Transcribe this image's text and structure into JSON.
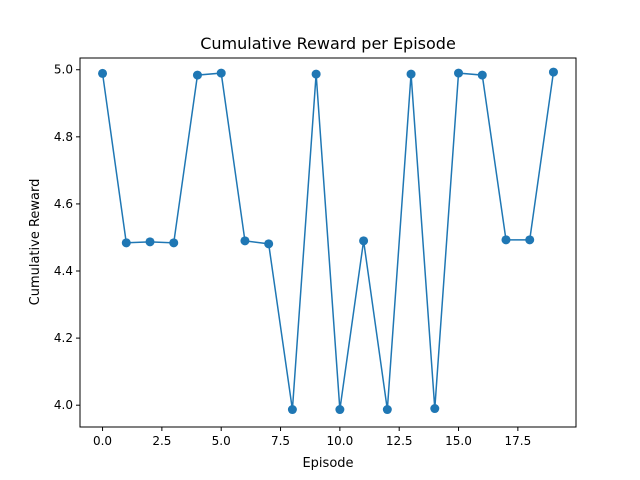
{
  "chart_data": {
    "type": "line",
    "title": "Cumulative Reward per Episode",
    "xlabel": "Episode",
    "ylabel": "Cumulative Reward",
    "xlim": [
      -0.95,
      19.95
    ],
    "ylim": [
      3.935,
      5.035
    ],
    "xticks": [
      0.0,
      2.5,
      5.0,
      7.5,
      10.0,
      12.5,
      15.0,
      17.5
    ],
    "xtick_labels": [
      "0.0",
      "2.5",
      "5.0",
      "7.5",
      "10.0",
      "12.5",
      "15.0",
      "17.5"
    ],
    "yticks": [
      4.0,
      4.2,
      4.4,
      4.6,
      4.8,
      5.0
    ],
    "ytick_labels": [
      "4.0",
      "4.2",
      "4.4",
      "4.6",
      "4.8",
      "5.0"
    ],
    "grid": false,
    "marker": "circle",
    "color": "#1f77b4",
    "series": [
      {
        "x": [
          0,
          1,
          2,
          3,
          4,
          5,
          6,
          7,
          8,
          9,
          10,
          11,
          12,
          13,
          14,
          15,
          16,
          17,
          18,
          19
        ],
        "values": [
          4.989,
          4.484,
          4.487,
          4.484,
          4.984,
          4.99,
          4.49,
          4.481,
          3.987,
          4.987,
          3.987,
          4.49,
          3.987,
          4.987,
          3.99,
          4.99,
          4.984,
          4.493,
          4.493,
          4.993
        ]
      }
    ]
  }
}
